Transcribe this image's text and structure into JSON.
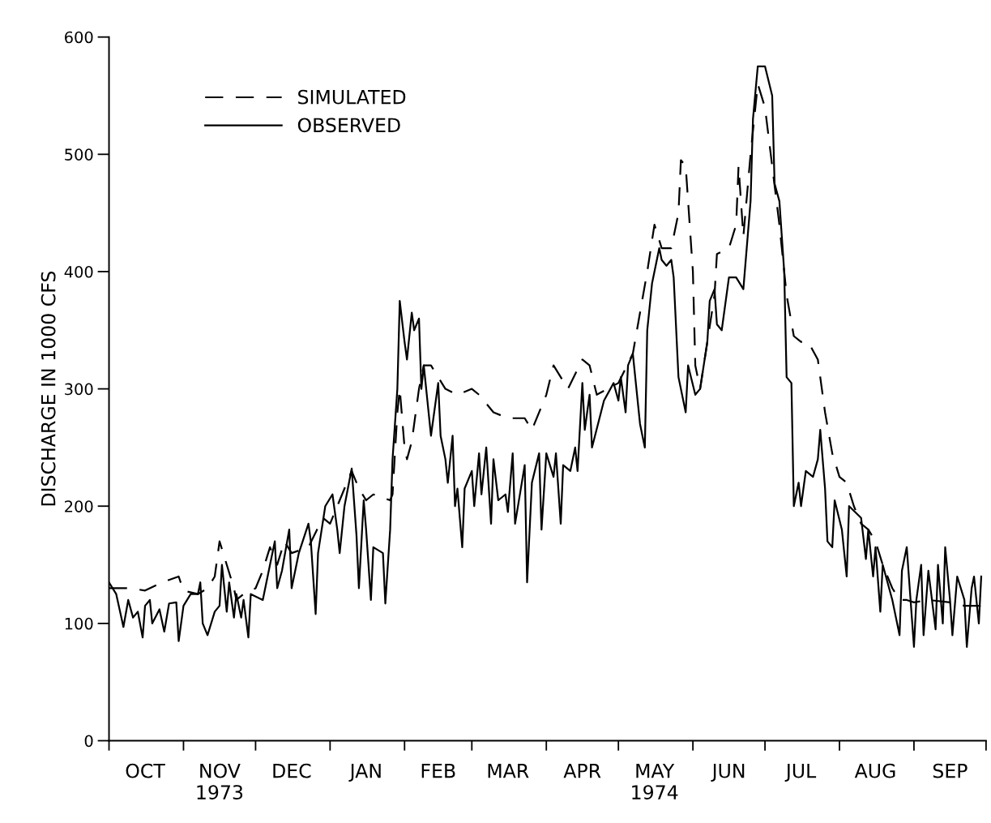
{
  "chart_data": {
    "type": "line",
    "ylabel": "DISCHARGE IN 1000 CFS",
    "xlim": [
      "1973-10-01",
      "1974-10-01"
    ],
    "ylim": [
      0,
      600
    ],
    "yticks": [
      0,
      100,
      200,
      300,
      400,
      500,
      600
    ],
    "xticks": [
      {
        "value": "1973-10-01",
        "label": null
      },
      {
        "value": "1973-11-01",
        "label": null
      },
      {
        "value": "1973-12-01",
        "label": null
      },
      {
        "value": "1974-01-01",
        "label": null
      },
      {
        "value": "1974-02-01",
        "label": null
      },
      {
        "value": "1974-03-01",
        "label": null
      },
      {
        "value": "1974-04-01",
        "label": null
      },
      {
        "value": "1974-05-01",
        "label": null
      },
      {
        "value": "1974-06-01",
        "label": null
      },
      {
        "value": "1974-07-01",
        "label": null
      },
      {
        "value": "1974-08-01",
        "label": null
      },
      {
        "value": "1974-09-01",
        "label": null
      },
      {
        "value": "1974-10-01",
        "label": null
      },
      {
        "value": "1973-10-16",
        "label": "OCT"
      },
      {
        "value": "1973-11-16",
        "label": "NOV\n1973"
      },
      {
        "value": "1973-12-16",
        "label": "DEC"
      },
      {
        "value": "1974-01-16",
        "label": "JAN"
      },
      {
        "value": "1974-02-15",
        "label": "FEB"
      },
      {
        "value": "1974-03-16",
        "label": "MAR"
      },
      {
        "value": "1974-04-16",
        "label": "APR"
      },
      {
        "value": "1974-05-16",
        "label": "MAY\n1974"
      },
      {
        "value": "1974-06-16",
        "label": "JUN"
      },
      {
        "value": "1974-07-16",
        "label": "JUL"
      },
      {
        "value": "1974-08-16",
        "label": "AUG"
      },
      {
        "value": "1974-09-16",
        "label": "SEP"
      }
    ],
    "legend": "top left",
    "grid": false,
    "series": [
      {
        "name": "SIMULATED",
        "color": "#000000",
        "line_style": "dashed",
        "x": [
          "1973-10-01",
          "1973-10-10",
          "1973-10-16",
          "1973-10-23",
          "1973-10-30",
          "1973-11-01",
          "1973-11-07",
          "1973-11-11",
          "1973-11-14",
          "1973-11-16",
          "1973-11-19",
          "1973-11-22",
          "1973-11-23",
          "1973-11-26",
          "1973-12-01",
          "1973-12-04",
          "1973-12-07",
          "1973-12-10",
          "1973-12-13",
          "1973-12-16",
          "1973-12-23",
          "1973-12-29",
          "1974-01-01",
          "1974-01-04",
          "1974-01-10",
          "1974-01-13",
          "1974-01-16",
          "1974-01-19",
          "1974-01-26",
          "1974-01-27",
          "1974-01-29",
          "1974-01-30",
          "1974-02-01",
          "1974-02-02",
          "1974-02-04",
          "1974-02-07",
          "1974-02-09",
          "1974-02-12",
          "1974-02-15",
          "1974-02-18",
          "1974-02-23",
          "1974-03-01",
          "1974-03-04",
          "1974-03-10",
          "1974-03-16",
          "1974-03-23",
          "1974-03-26",
          "1974-04-01",
          "1974-04-04",
          "1974-04-07",
          "1974-04-10",
          "1974-04-16",
          "1974-04-19",
          "1974-04-22",
          "1974-05-01",
          "1974-05-07",
          "1974-05-13",
          "1974-05-16",
          "1974-05-19",
          "1974-05-23",
          "1974-05-26",
          "1974-05-27",
          "1974-05-29",
          "1974-06-01",
          "1974-06-02",
          "1974-06-04",
          "1974-06-07",
          "1974-06-10",
          "1974-06-11",
          "1974-06-16",
          "1974-06-19",
          "1974-06-20",
          "1974-06-22",
          "1974-06-25",
          "1974-06-28",
          "1974-07-01",
          "1974-07-04",
          "1974-07-07",
          "1974-07-10",
          "1974-07-13",
          "1974-07-16",
          "1974-07-19",
          "1974-07-23",
          "1974-07-26",
          "1974-07-29",
          "1974-08-01",
          "1974-08-04",
          "1974-08-07",
          "1974-08-10",
          "1974-08-13",
          "1974-08-16",
          "1974-08-19",
          "1974-08-23",
          "1974-08-26",
          "1974-08-29",
          "1974-09-01",
          "1974-09-07",
          "1974-09-16",
          "1974-09-22",
          "1974-09-28",
          "1974-10-01"
        ],
        "values": [
          130,
          130,
          128,
          135,
          140,
          128,
          125,
          130,
          140,
          170,
          150,
          130,
          120,
          125,
          130,
          145,
          165,
          150,
          170,
          160,
          165,
          190,
          185,
          200,
          230,
          215,
          205,
          210,
          205,
          210,
          280,
          300,
          250,
          240,
          255,
          300,
          320,
          320,
          310,
          300,
          295,
          300,
          295,
          280,
          275,
          275,
          265,
          295,
          320,
          310,
          300,
          325,
          320,
          295,
          305,
          330,
          400,
          440,
          420,
          420,
          450,
          495,
          490,
          400,
          320,
          300,
          340,
          380,
          415,
          420,
          440,
          490,
          430,
          500,
          560,
          540,
          490,
          440,
          380,
          345,
          340,
          340,
          325,
          280,
          245,
          225,
          220,
          200,
          185,
          180,
          170,
          150,
          130,
          120,
          120,
          118,
          120,
          118,
          115,
          115,
          112
        ]
      },
      {
        "name": "OBSERVED",
        "color": "#000000",
        "line_style": "solid",
        "x": [
          "1973-10-01",
          "1973-10-04",
          "1973-10-07",
          "1973-10-09",
          "1973-10-11",
          "1973-10-13",
          "1973-10-15",
          "1973-10-16",
          "1973-10-18",
          "1973-10-19",
          "1973-10-22",
          "1973-10-24",
          "1973-10-26",
          "1973-10-29",
          "1973-10-30",
          "1973-11-01",
          "1973-11-04",
          "1973-11-07",
          "1973-11-08",
          "1973-11-09",
          "1973-11-11",
          "1973-11-14",
          "1973-11-16",
          "1973-11-17",
          "1973-11-19",
          "1973-11-20",
          "1973-11-22",
          "1973-11-23",
          "1973-11-25",
          "1973-11-26",
          "1973-11-28",
          "1973-11-29",
          "1973-12-04",
          "1973-12-07",
          "1973-12-09",
          "1973-12-10",
          "1973-12-12",
          "1973-12-15",
          "1973-12-16",
          "1973-12-19",
          "1973-12-23",
          "1973-12-24",
          "1973-12-26",
          "1973-12-27",
          "1973-12-30",
          "1974-01-02",
          "1974-01-04",
          "1974-01-05",
          "1974-01-07",
          "1974-01-10",
          "1974-01-12",
          "1974-01-13",
          "1974-01-15",
          "1974-01-16",
          "1974-01-18",
          "1974-01-19",
          "1974-01-23",
          "1974-01-24",
          "1974-01-26",
          "1974-01-27",
          "1974-01-29",
          "1974-01-30",
          "1974-02-01",
          "1974-02-02",
          "1974-02-04",
          "1974-02-05",
          "1974-02-07",
          "1974-02-08",
          "1974-02-09",
          "1974-02-12",
          "1974-02-15",
          "1974-02-16",
          "1974-02-18",
          "1974-02-19",
          "1974-02-21",
          "1974-02-22",
          "1974-02-23",
          "1974-02-25",
          "1974-02-26",
          "1974-03-01",
          "1974-03-02",
          "1974-03-04",
          "1974-03-05",
          "1974-03-07",
          "1974-03-09",
          "1974-03-10",
          "1974-03-12",
          "1974-03-15",
          "1974-03-16",
          "1974-03-18",
          "1974-03-19",
          "1974-03-23",
          "1974-03-24",
          "1974-03-26",
          "1974-03-29",
          "1974-03-30",
          "1974-04-01",
          "1974-04-04",
          "1974-04-05",
          "1974-04-07",
          "1974-04-08",
          "1974-04-11",
          "1974-04-13",
          "1974-04-14",
          "1974-04-16",
          "1974-04-17",
          "1974-04-19",
          "1974-04-20",
          "1974-04-25",
          "1974-04-29",
          "1974-05-01",
          "1974-05-02",
          "1974-05-04",
          "1974-05-05",
          "1974-05-07",
          "1974-05-10",
          "1974-05-12",
          "1974-05-13",
          "1974-05-15",
          "1974-05-18",
          "1974-05-19",
          "1974-05-21",
          "1974-05-23",
          "1974-05-24",
          "1974-05-26",
          "1974-05-29",
          "1974-05-30",
          "1974-06-02",
          "1974-06-04",
          "1974-06-07",
          "1974-06-08",
          "1974-06-10",
          "1974-06-11",
          "1974-06-13",
          "1974-06-16",
          "1974-06-19",
          "1974-06-22",
          "1974-06-25",
          "1974-06-26",
          "1974-06-28",
          "1974-07-01",
          "1974-07-04",
          "1974-07-05",
          "1974-07-07",
          "1974-07-09",
          "1974-07-10",
          "1974-07-12",
          "1974-07-13",
          "1974-07-15",
          "1974-07-16",
          "1974-07-18",
          "1974-07-21",
          "1974-07-23",
          "1974-07-24",
          "1974-07-26",
          "1974-07-27",
          "1974-07-29",
          "1974-07-30",
          "1974-08-02",
          "1974-08-04",
          "1974-08-05",
          "1974-08-10",
          "1974-08-12",
          "1974-08-13",
          "1974-08-15",
          "1974-08-16",
          "1974-08-18",
          "1974-08-19",
          "1974-08-23",
          "1974-08-26",
          "1974-08-27",
          "1974-08-29",
          "1974-09-01",
          "1974-09-02",
          "1974-09-04",
          "1974-09-05",
          "1974-09-07",
          "1974-09-10",
          "1974-09-11",
          "1974-09-13",
          "1974-09-14",
          "1974-09-16",
          "1974-09-17",
          "1974-09-19",
          "1974-09-22",
          "1974-09-23",
          "1974-09-25",
          "1974-09-26",
          "1974-09-28",
          "1974-09-29"
        ],
        "values": [
          135,
          125,
          97,
          120,
          105,
          110,
          88,
          115,
          120,
          100,
          112,
          93,
          117,
          118,
          85,
          115,
          125,
          125,
          135,
          100,
          90,
          110,
          115,
          150,
          110,
          135,
          105,
          125,
          105,
          120,
          88,
          125,
          120,
          150,
          170,
          130,
          145,
          180,
          130,
          160,
          185,
          170,
          108,
          160,
          200,
          210,
          180,
          160,
          200,
          232,
          175,
          130,
          205,
          180,
          120,
          165,
          160,
          117,
          180,
          240,
          300,
          375,
          340,
          325,
          365,
          350,
          360,
          300,
          320,
          260,
          305,
          260,
          240,
          220,
          260,
          200,
          215,
          165,
          215,
          230,
          200,
          245,
          210,
          250,
          185,
          240,
          205,
          210,
          195,
          245,
          185,
          235,
          135,
          220,
          245,
          180,
          245,
          225,
          245,
          185,
          235,
          230,
          250,
          230,
          305,
          265,
          295,
          250,
          290,
          305,
          290,
          310,
          280,
          320,
          330,
          270,
          250,
          350,
          390,
          420,
          410,
          405,
          410,
          395,
          310,
          280,
          320,
          295,
          300,
          340,
          375,
          385,
          355,
          350,
          395,
          395,
          385,
          460,
          530,
          575,
          575,
          550,
          475,
          460,
          400,
          310,
          305,
          200,
          220,
          200,
          230,
          225,
          240,
          265,
          215,
          170,
          165,
          205,
          180,
          140,
          200,
          190,
          155,
          180,
          140,
          165,
          110,
          150,
          120,
          90,
          145,
          165,
          80,
          120,
          150,
          90,
          145,
          95,
          150,
          100,
          165,
          120,
          90,
          140,
          120,
          80,
          130,
          140,
          100,
          140
        ]
      }
    ]
  }
}
